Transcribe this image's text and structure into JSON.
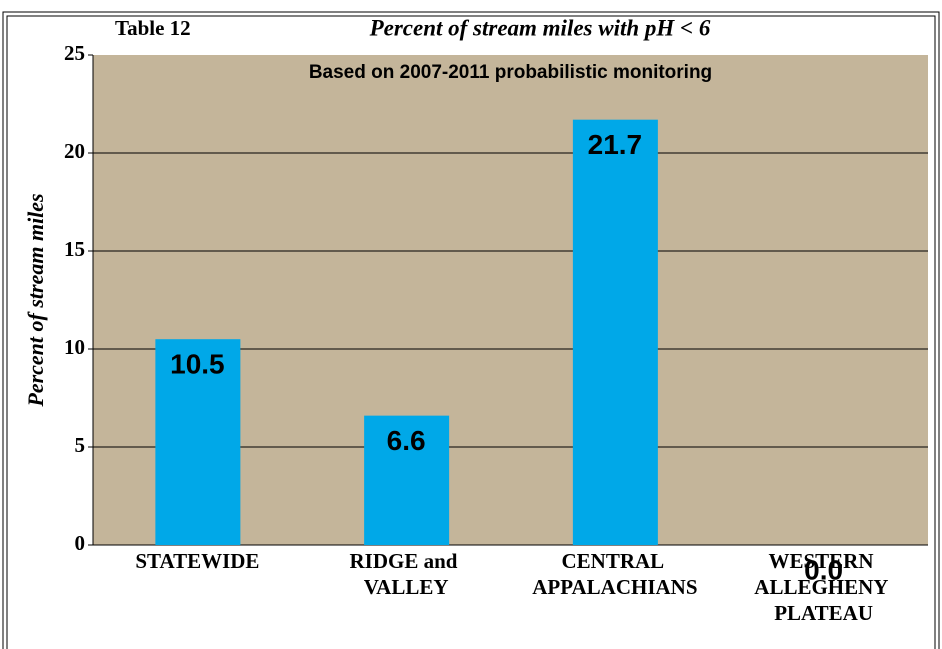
{
  "chart_data": {
    "type": "bar",
    "table_label": "Table 12",
    "title": "Percent of stream miles with pH < 6",
    "subtitle": "Based on 2007-2011 probabilistic monitoring",
    "y_label": "Percent of stream miles",
    "categories": [
      "STATEWIDE",
      "RIDGE and VALLEY",
      "CENTRAL APPALACHIANS",
      "WESTERN ALLEGHENY PLATEAU"
    ],
    "values": [
      10.5,
      6.6,
      21.7,
      0
    ],
    "value_labels": [
      "10.5",
      "6.6",
      "21.7",
      "0.0"
    ],
    "color": "#00a8e8",
    "background": "#c4b59a",
    "ylim": [
      0,
      25
    ],
    "yticks": [
      0,
      5,
      10,
      15,
      20,
      25
    ],
    "grid": true
  }
}
